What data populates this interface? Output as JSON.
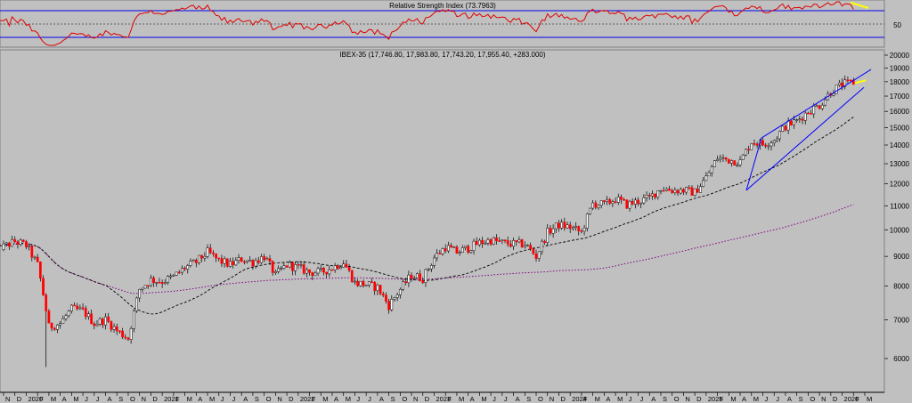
{
  "rsi": {
    "title": "Relative Strength Index (73.7963)",
    "ytick": "50",
    "upper": 70,
    "lower": 30,
    "mid": 50,
    "colors": {
      "line": "#e00000",
      "bands": "#0000ee",
      "mid": "#606060",
      "highlight": "#ffff00"
    }
  },
  "price": {
    "title": "IBEX-35 (17,746.80, 17,983.80, 17,743.20, 17,955.40, +283.000)",
    "yticks": [
      "20000",
      "19000",
      "18000",
      "17000",
      "16000",
      "15000",
      "14000",
      "13000",
      "12000",
      "11000",
      "10000",
      "9000",
      "8000",
      "7000",
      "6000"
    ],
    "colors": {
      "up": "#ffffff",
      "down": "#ff0000",
      "wick": "#000000",
      "ma_fast": "#000000",
      "ma_slow": "#800080",
      "channel": "#0000ff",
      "highlight": "#ffff00"
    }
  },
  "xaxis": {
    "labels": [
      "N",
      "D",
      "2020",
      "F",
      "M",
      "A",
      "M",
      "J",
      "J",
      "A",
      "S",
      "O",
      "N",
      "D",
      "2021",
      "F",
      "M",
      "A",
      "M",
      "J",
      "J",
      "A",
      "S",
      "O",
      "N",
      "D",
      "2022",
      "F",
      "M",
      "A",
      "M",
      "J",
      "J",
      "A",
      "S",
      "O",
      "N",
      "D",
      "2023",
      "F",
      "M",
      "A",
      "M",
      "J",
      "J",
      "A",
      "S",
      "O",
      "N",
      "D",
      "2024",
      "F",
      "M",
      "A",
      "M",
      "J",
      "J",
      "A",
      "S",
      "O",
      "N",
      "D",
      "2025",
      "F",
      "M",
      "A",
      "M",
      "J",
      "J",
      "A",
      "S",
      "O",
      "N",
      "D",
      "2026",
      "F",
      "M"
    ]
  },
  "chart_data": {
    "type": "candlestick",
    "series_name": "IBEX-35",
    "y_scale": "log",
    "ylim": [
      5500,
      20000
    ],
    "last_bar": {
      "open": 17746.8,
      "high": 17983.8,
      "low": 17743.2,
      "close": 17955.4,
      "change": 283.0
    },
    "monthly_close": [
      [
        "2019-11",
        9350
      ],
      [
        "2019-12",
        9550
      ],
      [
        "2020-01",
        9400
      ],
      [
        "2020-02",
        8700
      ],
      [
        "2020-03",
        6800
      ],
      [
        "2020-04",
        6900
      ],
      [
        "2020-05",
        7300
      ],
      [
        "2020-06",
        7250
      ],
      [
        "2020-07",
        6900
      ],
      [
        "2020-08",
        7000
      ],
      [
        "2020-09",
        6700
      ],
      [
        "2020-10",
        6500
      ],
      [
        "2020-11",
        7900
      ],
      [
        "2020-12",
        8200
      ],
      [
        "2021-01",
        8150
      ],
      [
        "2021-02",
        8300
      ],
      [
        "2021-03",
        8600
      ],
      [
        "2021-04",
        8800
      ],
      [
        "2021-05",
        9150
      ],
      [
        "2021-06",
        8850
      ],
      [
        "2021-07",
        8700
      ],
      [
        "2021-08",
        8900
      ],
      [
        "2021-09",
        8800
      ],
      [
        "2021-10",
        9000
      ],
      [
        "2021-11",
        8350
      ],
      [
        "2021-12",
        8700
      ],
      [
        "2022-01",
        8600
      ],
      [
        "2022-02",
        8450
      ],
      [
        "2022-03",
        8450
      ],
      [
        "2022-04",
        8600
      ],
      [
        "2022-05",
        8800
      ],
      [
        "2022-06",
        8100
      ],
      [
        "2022-07",
        8050
      ],
      [
        "2022-08",
        7950
      ],
      [
        "2022-09",
        7400
      ],
      [
        "2022-10",
        7900
      ],
      [
        "2022-11",
        8350
      ],
      [
        "2022-12",
        8250
      ],
      [
        "2023-01",
        8950
      ],
      [
        "2023-02",
        9350
      ],
      [
        "2023-03",
        9150
      ],
      [
        "2023-04",
        9300
      ],
      [
        "2023-05",
        9500
      ],
      [
        "2023-06",
        9600
      ],
      [
        "2023-07",
        9500
      ],
      [
        "2023-08",
        9450
      ],
      [
        "2023-09",
        9450
      ],
      [
        "2023-10",
        9000
      ],
      [
        "2023-11",
        9900
      ],
      [
        "2023-12",
        10200
      ],
      [
        "2024-01",
        10100
      ],
      [
        "2024-02",
        9900
      ],
      [
        "2024-03",
        11100
      ],
      [
        "2024-04",
        11050
      ],
      [
        "2024-05",
        11300
      ],
      [
        "2024-06",
        11050
      ],
      [
        "2024-07",
        11200
      ],
      [
        "2024-08",
        11350
      ],
      [
        "2024-09",
        11800
      ],
      [
        "2024-10",
        11700
      ],
      [
        "2024-11",
        11700
      ],
      [
        "2024-12",
        11600
      ],
      [
        "2025-01",
        12300
      ],
      [
        "2025-02",
        13300
      ],
      [
        "2025-03",
        13200
      ],
      [
        "2025-04",
        13100
      ],
      [
        "2025-05",
        14200
      ],
      [
        "2025-06",
        14050
      ],
      [
        "2025-07",
        14300
      ],
      [
        "2025-08",
        15100
      ],
      [
        "2025-09",
        15400
      ],
      [
        "2025-10",
        16000
      ],
      [
        "2025-11",
        16400
      ],
      [
        "2025-12",
        17300
      ],
      [
        "2026-01",
        17800
      ],
      [
        "2026-02",
        17955
      ]
    ],
    "overlays": [
      {
        "name": "moving-average-fast",
        "style": "dashed",
        "color": "#000000"
      },
      {
        "name": "moving-average-slow",
        "style": "dotted",
        "color": "#800080"
      },
      {
        "name": "rising-wedge-channel",
        "style": "solid",
        "color": "#0000ff"
      }
    ]
  }
}
